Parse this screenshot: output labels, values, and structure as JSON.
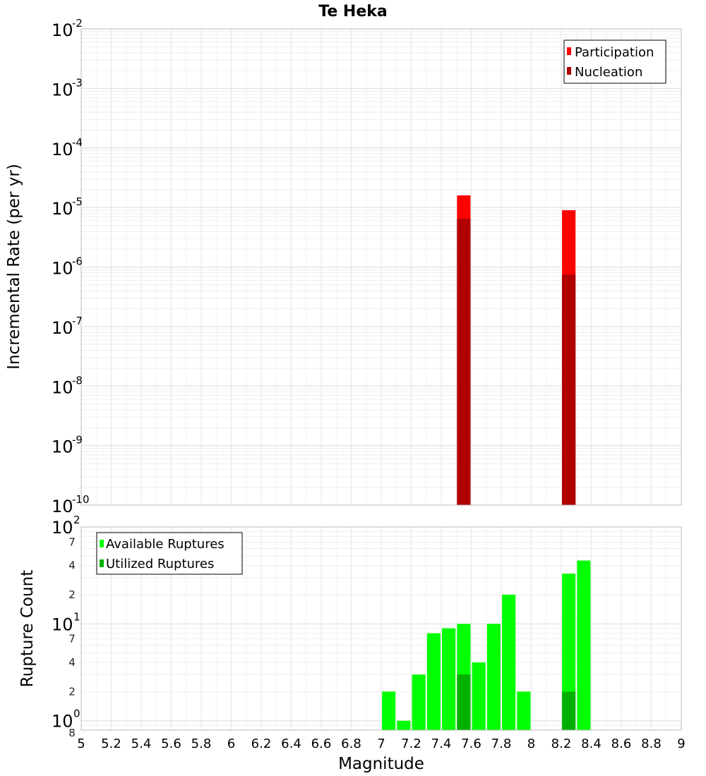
{
  "chart_data": [
    {
      "type": "bar",
      "title": "Te Heka",
      "ylabel": "Incremental Rate (per yr)",
      "xlabel": "",
      "y_scale": "log",
      "ylim": [
        1e-10,
        0.01
      ],
      "xlim": [
        5,
        9
      ],
      "grid": true,
      "legend_position": "top-right",
      "y_ticks": [
        {
          "base": "10",
          "exp": "-10"
        },
        {
          "base": "10",
          "exp": "-9"
        },
        {
          "base": "10",
          "exp": "-8"
        },
        {
          "base": "10",
          "exp": "-7"
        },
        {
          "base": "10",
          "exp": "-6"
        },
        {
          "base": "10",
          "exp": "-5"
        },
        {
          "base": "10",
          "exp": "-4"
        },
        {
          "base": "10",
          "exp": "-3"
        },
        {
          "base": "10",
          "exp": "-2"
        }
      ],
      "series": [
        {
          "name": "Participation",
          "color": "#ff0000",
          "points": [
            {
              "x": 7.55,
              "y": 1.6e-05
            },
            {
              "x": 8.25,
              "y": 9e-06
            }
          ]
        },
        {
          "name": "Nucleation",
          "color": "#b00000",
          "points": [
            {
              "x": 7.55,
              "y": 6.5e-06
            },
            {
              "x": 8.25,
              "y": 7.5e-07
            }
          ]
        }
      ]
    },
    {
      "type": "bar",
      "title": "",
      "ylabel": "Rupture Count",
      "xlabel": "Magnitude",
      "y_scale": "log",
      "ylim": [
        0.8,
        100
      ],
      "xlim": [
        5,
        9
      ],
      "grid": true,
      "legend_position": "top-left",
      "x_ticks": [
        "5",
        "5.2",
        "5.4",
        "5.6",
        "5.8",
        "6",
        "6.2",
        "6.4",
        "6.6",
        "6.8",
        "7",
        "7.2",
        "7.4",
        "7.6",
        "7.8",
        "8",
        "8.2",
        "8.4",
        "8.6",
        "8.8",
        "9"
      ],
      "y_major_ticks": [
        {
          "base": "10",
          "exp": "0"
        },
        {
          "base": "10",
          "exp": "1"
        },
        {
          "base": "10",
          "exp": "2"
        }
      ],
      "y_minor_ticks": [
        "8",
        "2",
        "4",
        "7",
        "2",
        "4",
        "7"
      ],
      "series": [
        {
          "name": "Available Ruptures",
          "color": "#00ff00",
          "points": [
            {
              "x": 7.05,
              "y": 2
            },
            {
              "x": 7.15,
              "y": 1
            },
            {
              "x": 7.25,
              "y": 3
            },
            {
              "x": 7.35,
              "y": 8
            },
            {
              "x": 7.45,
              "y": 9
            },
            {
              "x": 7.55,
              "y": 10
            },
            {
              "x": 7.65,
              "y": 4
            },
            {
              "x": 7.75,
              "y": 10
            },
            {
              "x": 7.85,
              "y": 20
            },
            {
              "x": 7.95,
              "y": 2
            },
            {
              "x": 8.25,
              "y": 33
            },
            {
              "x": 8.35,
              "y": 45
            }
          ]
        },
        {
          "name": "Utilized Ruptures",
          "color": "#00b000",
          "points": [
            {
              "x": 7.55,
              "y": 3
            },
            {
              "x": 8.25,
              "y": 2
            }
          ]
        }
      ]
    }
  ]
}
